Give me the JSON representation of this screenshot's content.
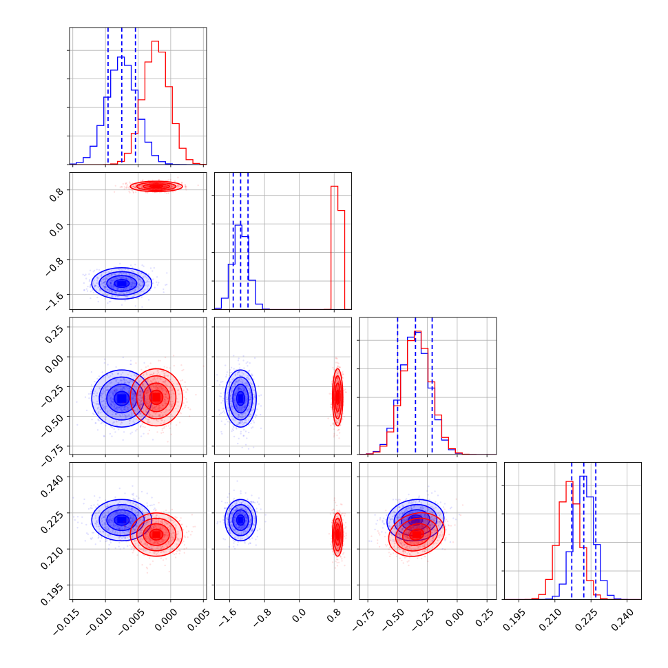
{
  "chart_data": {
    "type": "corner",
    "parameters": 4,
    "grid": true,
    "series": [
      {
        "name": "",
        "color": "#0000ff",
        "mean": [
          -0.0075,
          -1.35,
          -0.35,
          0.222
        ],
        "std": [
          0.0023,
          0.18,
          0.12,
          0.0043
        ],
        "quantiles": [
          [
            -0.0096,
            -0.0075,
            -0.0054
          ],
          [
            -1.52,
            -1.35,
            -1.18
          ],
          [
            -0.5,
            -0.35,
            -0.21
          ],
          [
            0.217,
            0.222,
            0.227
          ]
        ]
      },
      {
        "name": "",
        "color": "#ff0000",
        "mean": [
          -0.0022,
          0.88,
          -0.34,
          0.216
        ],
        "std": [
          0.002,
          0.06,
          0.12,
          0.0045
        ]
      }
    ],
    "correlation_blue_p3_p4": 0.15,
    "correlation_red_p3_p4": 0.35,
    "ranges": [
      [
        -0.0155,
        0.0055
      ],
      [
        -1.95,
        1.2
      ],
      [
        -0.82,
        0.33
      ],
      [
        0.189,
        0.246
      ]
    ],
    "ticks": [
      {
        "values": [
          -0.015,
          -0.01,
          -0.005,
          0.0,
          0.005
        ],
        "labels": [
          "−0.015",
          "−0.010",
          "−0.005",
          "0.000",
          "0.005"
        ]
      },
      {
        "values": [
          -1.6,
          -0.8,
          0.0,
          0.8
        ],
        "labels": [
          "−1.6",
          "−0.8",
          "0.0",
          "0.8"
        ]
      },
      {
        "values": [
          -0.75,
          -0.5,
          -0.25,
          0.0,
          0.25
        ],
        "labels": [
          "−0.75",
          "−0.50",
          "−0.25",
          "0.00",
          "0.25"
        ]
      },
      {
        "values": [
          0.195,
          0.21,
          0.225,
          0.24
        ],
        "labels": [
          "0.195",
          "0.210",
          "0.225",
          "0.240"
        ]
      }
    ]
  }
}
